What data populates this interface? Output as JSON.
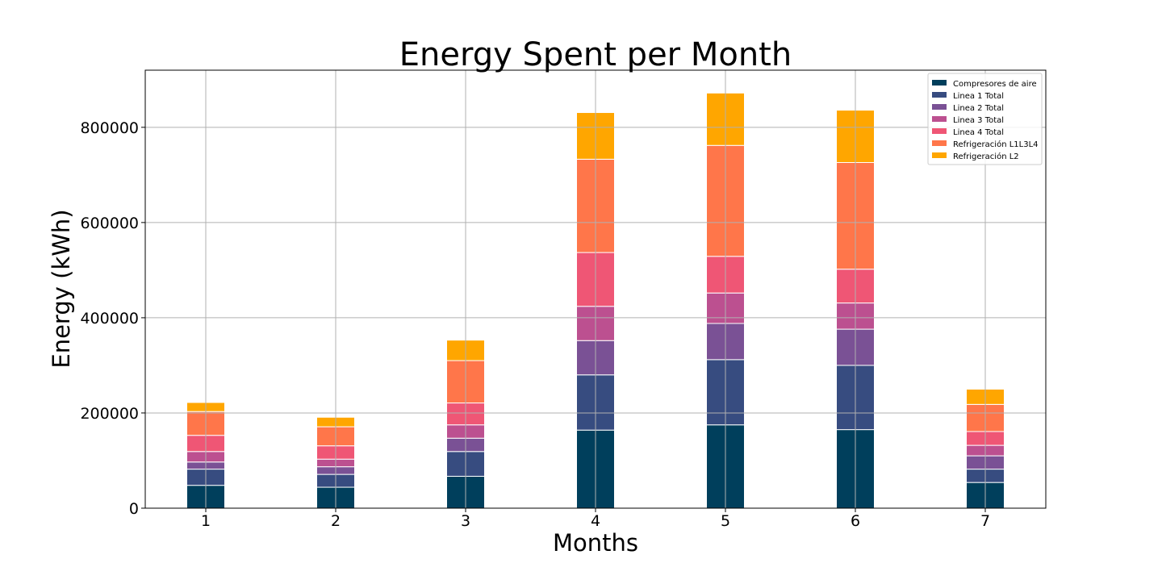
{
  "chart_data": {
    "type": "bar",
    "stacked": true,
    "title": "Energy Spent per Month",
    "xlabel": "Months",
    "ylabel": "Energy (kWh)",
    "categories": [
      "1",
      "2",
      "3",
      "4",
      "5",
      "6",
      "7"
    ],
    "ylim": [
      0,
      920000
    ],
    "yticks": [
      0,
      200000,
      400000,
      600000,
      800000
    ],
    "ytick_labels": [
      "0",
      "200000",
      "400000",
      "600000",
      "800000"
    ],
    "grid": true,
    "legend_position": "top-right",
    "series": [
      {
        "name": "Compresores de aire",
        "color": "#003f5c",
        "values": [
          48000,
          44000,
          67000,
          164000,
          175000,
          165000,
          54000
        ]
      },
      {
        "name": "Linea 1 Total",
        "color": "#374c80",
        "values": [
          34000,
          27000,
          52000,
          116000,
          137000,
          135000,
          28000
        ]
      },
      {
        "name": "Linea 2 Total",
        "color": "#7a5195",
        "values": [
          15000,
          16000,
          28000,
          72000,
          76000,
          76000,
          28000
        ]
      },
      {
        "name": "Linea 3 Total",
        "color": "#bc5090",
        "values": [
          22000,
          16000,
          28000,
          72000,
          64000,
          55000,
          22000
        ]
      },
      {
        "name": "Linea 4 Total",
        "color": "#ef5675",
        "values": [
          34000,
          28000,
          46000,
          113000,
          77000,
          71000,
          29000
        ]
      },
      {
        "name": "Refrigeración L1L3L4",
        "color": "#ff764a",
        "values": [
          50000,
          40000,
          89000,
          196000,
          233000,
          224000,
          57000
        ]
      },
      {
        "name": "Refrigeración L2",
        "color": "#ffa600",
        "values": [
          19000,
          20000,
          43000,
          98000,
          110000,
          110000,
          32000
        ]
      }
    ]
  }
}
